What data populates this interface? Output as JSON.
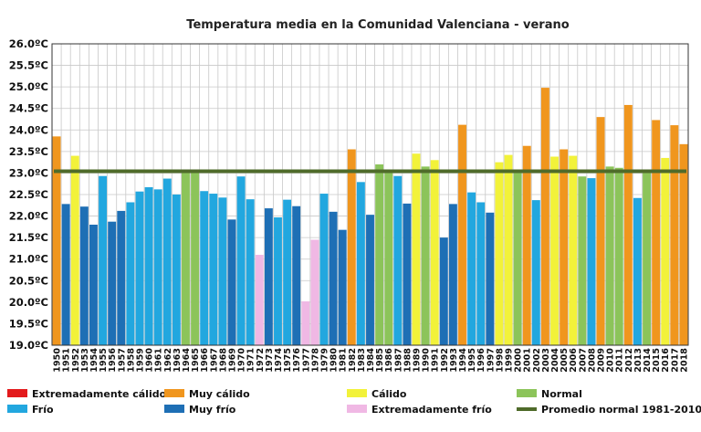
{
  "chart_data": {
    "type": "bar",
    "title": "Temperatura media en la Comunidad Valenciana - verano",
    "ylim": [
      19.0,
      26.0
    ],
    "y_ticks": [
      "26.0ºC",
      "25.5ºC",
      "25.0ºC",
      "24.5ºC",
      "24.0ºC",
      "23.5ºC",
      "23.0ºC",
      "22.5ºC",
      "22.0ºC",
      "21.5ºC",
      "21.0ºC",
      "20.5ºC",
      "20.0ºC",
      "19.5ºC",
      "19.0ºC"
    ],
    "grid": true,
    "categories": [
      "1950",
      "1951",
      "1952",
      "1953",
      "1954",
      "1955",
      "1956",
      "1957",
      "1958",
      "1959",
      "1960",
      "1961",
      "1962",
      "1963",
      "1964",
      "1965",
      "1966",
      "1967",
      "1968",
      "1969",
      "1970",
      "1971",
      "1972",
      "1973",
      "1974",
      "1975",
      "1976",
      "1977",
      "1978",
      "1979",
      "1980",
      "1981",
      "1982",
      "1983",
      "1984",
      "1985",
      "1986",
      "1987",
      "1988",
      "1989",
      "1990",
      "1991",
      "1992",
      "1993",
      "1994",
      "1995",
      "1996",
      "1997",
      "1998",
      "1999",
      "2000",
      "2001",
      "2002",
      "2003",
      "2004",
      "2005",
      "2006",
      "2007",
      "2008",
      "2009",
      "2010",
      "2011",
      "2012",
      "2013",
      "2014",
      "2015",
      "2016",
      "2017",
      "2018"
    ],
    "values": [
      23.85,
      22.28,
      23.4,
      22.22,
      21.8,
      22.93,
      21.87,
      22.12,
      22.32,
      22.57,
      22.67,
      22.62,
      22.87,
      22.5,
      23.02,
      23.02,
      22.58,
      22.52,
      22.43,
      21.92,
      22.92,
      22.39,
      21.1,
      22.18,
      21.97,
      22.38,
      22.23,
      20.02,
      21.45,
      22.52,
      22.1,
      21.68,
      23.55,
      22.79,
      22.03,
      23.2,
      23.02,
      22.93,
      22.29,
      23.45,
      23.15,
      23.3,
      21.5,
      22.28,
      24.12,
      22.55,
      22.32,
      22.08,
      23.25,
      23.42,
      23.08,
      23.63,
      22.37,
      24.98,
      23.38,
      23.55,
      23.4,
      22.92,
      22.88,
      24.3,
      23.15,
      23.12,
      24.58,
      22.42,
      23.08,
      24.23,
      23.35,
      24.11,
      23.67
    ],
    "classes": [
      "muy_calido",
      "muy_frio",
      "calido",
      "muy_frio",
      "muy_frio",
      "frio",
      "muy_frio",
      "muy_frio",
      "frio",
      "frio",
      "frio",
      "frio",
      "frio",
      "frio",
      "normal",
      "normal",
      "frio",
      "frio",
      "frio",
      "muy_frio",
      "frio",
      "frio",
      "ext_frio",
      "muy_frio",
      "frio",
      "frio",
      "muy_frio",
      "ext_frio",
      "ext_frio",
      "frio",
      "muy_frio",
      "muy_frio",
      "muy_calido",
      "frio",
      "muy_frio",
      "normal",
      "normal",
      "frio",
      "muy_frio",
      "calido",
      "normal",
      "calido",
      "muy_frio",
      "muy_frio",
      "muy_calido",
      "frio",
      "frio",
      "muy_frio",
      "calido",
      "calido",
      "normal",
      "muy_calido",
      "frio",
      "muy_calido",
      "calido",
      "muy_calido",
      "calido",
      "normal",
      "frio",
      "muy_calido",
      "normal",
      "normal",
      "muy_calido",
      "frio",
      "normal",
      "muy_calido",
      "calido",
      "muy_calido",
      "muy_calido"
    ],
    "average_line": 23.04,
    "legend": [
      {
        "key": "ext_calido",
        "label": "Extremadamente cálido",
        "color": "#e31a1c",
        "kind": "bar"
      },
      {
        "key": "muy_calido",
        "label": "Muy cálido",
        "color": "#f0961e",
        "kind": "bar"
      },
      {
        "key": "calido",
        "label": "Cálido",
        "color": "#f2f23a",
        "kind": "bar"
      },
      {
        "key": "normal",
        "label": "Normal",
        "color": "#8cc45a",
        "kind": "bar"
      },
      {
        "key": "frio",
        "label": "Frío",
        "color": "#22a7df",
        "kind": "bar"
      },
      {
        "key": "muy_frio",
        "label": "Muy frío",
        "color": "#1e6fb5",
        "kind": "bar"
      },
      {
        "key": "ext_frio",
        "label": "Extremadamente frío",
        "color": "#f0b8e4",
        "kind": "bar"
      },
      {
        "key": "promedio",
        "label": "Promedio normal 1981-2010",
        "color": "#4f6b2a",
        "kind": "line"
      }
    ],
    "legend_position": "bottom"
  }
}
